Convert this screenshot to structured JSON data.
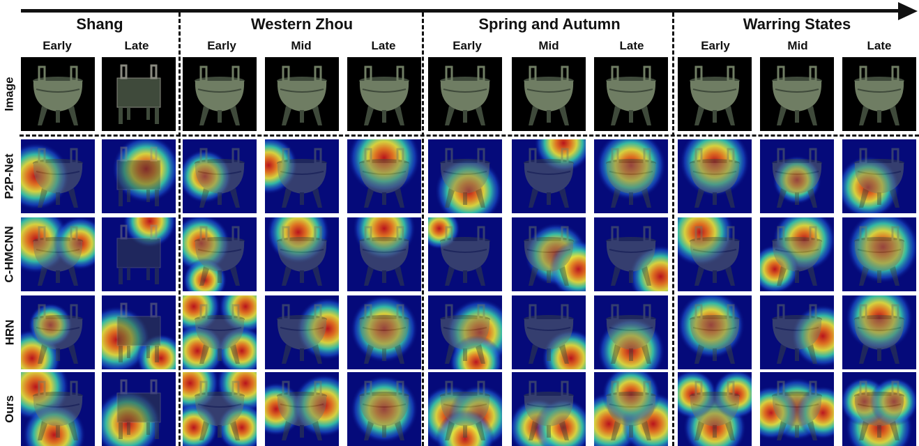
{
  "timeline_arrow": "right-arrow",
  "periods": [
    {
      "name": "Shang",
      "phases": [
        "Early",
        "Late"
      ]
    },
    {
      "name": "Western Zhou",
      "phases": [
        "Early",
        "Mid",
        "Late"
      ]
    },
    {
      "name": "Spring and Autumn",
      "phases": [
        "Early",
        "Mid",
        "Late"
      ]
    },
    {
      "name": "Warring States",
      "phases": [
        "Early",
        "Mid",
        "Late"
      ]
    }
  ],
  "rows": [
    "Image",
    "P2P-Net",
    "C-HMCNN",
    "HRN",
    "Ours"
  ],
  "colors": {
    "heatmap_background": "#050a7a",
    "image_background": "#000000",
    "bronze": "#6f7d63",
    "bronze_dark": "#3f4a3b",
    "heat_scale": [
      "#050a7a",
      "#1d5bd6",
      "#36c6a8",
      "#e8e23a",
      "#f07a1a",
      "#c81414"
    ]
  },
  "heatmaps": {
    "P2P-Net": [
      [
        [
          0.2,
          0.5,
          0.9
        ]
      ],
      [
        [
          0.6,
          0.4,
          0.9
        ]
      ],
      [
        [
          0.3,
          0.5,
          0.6
        ]
      ],
      [
        [
          0.05,
          0.35,
          0.7
        ]
      ],
      [
        [
          0.5,
          0.25,
          1.0
        ]
      ],
      [
        [
          0.55,
          0.7,
          0.9
        ]
      ],
      [
        [
          0.7,
          0.05,
          0.7
        ]
      ],
      [
        [
          0.5,
          0.35,
          0.95
        ]
      ],
      [
        [
          0.5,
          0.3,
          0.95
        ]
      ],
      [
        [
          0.5,
          0.55,
          0.5
        ]
      ],
      [
        [
          0.35,
          0.65,
          0.8
        ]
      ]
    ],
    "C-HMCNN": [
      [
        [
          0.2,
          0.3,
          0.9
        ],
        [
          0.8,
          0.35,
          0.6
        ]
      ],
      [
        [
          0.65,
          0.05,
          0.6
        ]
      ],
      [
        [
          0.25,
          0.35,
          0.7
        ],
        [
          0.3,
          0.85,
          0.4
        ]
      ],
      [
        [
          0.45,
          0.2,
          0.8
        ]
      ],
      [
        [
          0.5,
          0.15,
          0.8
        ]
      ],
      [
        [
          0.15,
          0.15,
          0.35
        ]
      ],
      [
        [
          0.6,
          0.5,
          0.8
        ],
        [
          0.9,
          0.7,
          0.7
        ]
      ],
      [
        [
          0.9,
          0.8,
          0.8
        ]
      ],
      [
        [
          0.3,
          0.2,
          0.9
        ]
      ],
      [
        [
          0.6,
          0.3,
          0.8
        ],
        [
          0.2,
          0.7,
          0.5
        ]
      ],
      [
        [
          0.55,
          0.4,
          1.0
        ]
      ]
    ],
    "HRN": [
      [
        [
          0.15,
          0.85,
          0.7
        ],
        [
          0.4,
          0.4,
          0.4
        ]
      ],
      [
        [
          0.2,
          0.6,
          0.9
        ],
        [
          0.8,
          0.85,
          0.5
        ]
      ],
      [
        [
          0.15,
          0.15,
          0.6
        ],
        [
          0.85,
          0.15,
          0.6
        ],
        [
          0.2,
          0.75,
          0.6
        ],
        [
          0.8,
          0.75,
          0.5
        ]
      ],
      [
        [
          0.85,
          0.45,
          0.8
        ]
      ],
      [
        [
          0.5,
          0.45,
          0.9
        ]
      ],
      [
        [
          0.7,
          0.5,
          0.9
        ],
        [
          0.65,
          0.9,
          0.6
        ]
      ],
      [
        [
          0.8,
          0.85,
          0.7
        ]
      ],
      [
        [
          0.5,
          0.75,
          0.9
        ]
      ],
      [
        [
          0.45,
          0.4,
          0.9
        ]
      ],
      [
        [
          0.85,
          0.55,
          0.8
        ]
      ],
      [
        [
          0.5,
          0.3,
          0.9
        ]
      ]
    ],
    "Ours": [
      [
        [
          0.2,
          0.2,
          0.9
        ],
        [
          0.45,
          0.85,
          0.8
        ]
      ],
      [
        [
          0.35,
          0.7,
          0.9
        ]
      ],
      [
        [
          0.1,
          0.15,
          0.7
        ],
        [
          0.85,
          0.15,
          0.7
        ],
        [
          0.15,
          0.75,
          0.5
        ],
        [
          0.8,
          0.75,
          0.5
        ]
      ],
      [
        [
          0.15,
          0.5,
          0.6
        ],
        [
          0.8,
          0.45,
          0.8
        ]
      ],
      [
        [
          0.5,
          0.5,
          0.9
        ]
      ],
      [
        [
          0.3,
          0.6,
          0.8
        ],
        [
          0.7,
          0.6,
          0.8
        ],
        [
          0.5,
          0.9,
          0.7
        ]
      ],
      [
        [
          0.35,
          0.75,
          0.7
        ],
        [
          0.7,
          0.75,
          0.7
        ]
      ],
      [
        [
          0.2,
          0.7,
          0.8
        ],
        [
          0.8,
          0.7,
          0.8
        ],
        [
          0.5,
          0.3,
          0.7
        ]
      ],
      [
        [
          0.5,
          0.75,
          0.8
        ],
        [
          0.2,
          0.3,
          0.5
        ],
        [
          0.8,
          0.3,
          0.5
        ]
      ],
      [
        [
          0.5,
          0.5,
          0.8
        ],
        [
          0.15,
          0.55,
          0.6
        ],
        [
          0.85,
          0.55,
          0.6
        ]
      ],
      [
        [
          0.5,
          0.75,
          0.9
        ],
        [
          0.3,
          0.4,
          0.5
        ],
        [
          0.7,
          0.4,
          0.5
        ]
      ]
    ]
  }
}
